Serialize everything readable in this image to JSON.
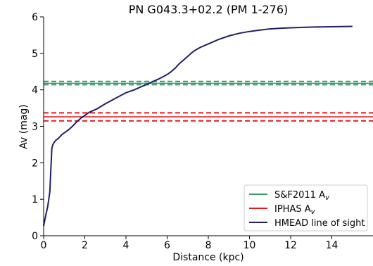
{
  "chart_data": {
    "type": "line",
    "title": "PN G043.3+02.2 (PM 1-276)",
    "xlabel": "Distance (kpc)",
    "ylabel": "Av (mag)",
    "xlim": [
      0,
      16
    ],
    "ylim": [
      0,
      6
    ],
    "xticks": [
      0,
      2,
      4,
      6,
      8,
      10,
      12,
      14
    ],
    "yticks": [
      0,
      1,
      2,
      3,
      4,
      5,
      6
    ],
    "grid": false,
    "legend_position": "bottom-right",
    "series": [
      {
        "name": "HMEAD line of sight",
        "color": "#1f1f6b",
        "style": "solid",
        "x": [
          0.0,
          0.1,
          0.2,
          0.3,
          0.35,
          0.4,
          0.45,
          0.5,
          0.6,
          0.7,
          0.8,
          0.9,
          1.0,
          1.2,
          1.4,
          1.6,
          1.8,
          2.0,
          2.2,
          2.4,
          2.6,
          2.8,
          3.0,
          3.2,
          3.4,
          3.6,
          3.8,
          4.0,
          4.2,
          4.4,
          4.6,
          4.8,
          5.0,
          5.2,
          5.4,
          5.6,
          5.8,
          6.0,
          6.2,
          6.4,
          6.6,
          6.8,
          7.0,
          7.2,
          7.4,
          7.6,
          7.8,
          8.0,
          8.5,
          9.0,
          9.5,
          10.0,
          10.5,
          11.0,
          11.5,
          12.0,
          12.5,
          13.0,
          13.5,
          14.0,
          14.5,
          15.0
        ],
        "y": [
          0.27,
          0.55,
          0.8,
          1.2,
          1.8,
          2.4,
          2.5,
          2.55,
          2.62,
          2.66,
          2.72,
          2.78,
          2.82,
          2.9,
          3.0,
          3.12,
          3.22,
          3.3,
          3.38,
          3.43,
          3.48,
          3.55,
          3.62,
          3.68,
          3.74,
          3.8,
          3.86,
          3.92,
          3.96,
          4.0,
          4.05,
          4.1,
          4.15,
          4.2,
          4.25,
          4.3,
          4.36,
          4.42,
          4.5,
          4.6,
          4.72,
          4.82,
          4.92,
          5.02,
          5.1,
          5.16,
          5.21,
          5.26,
          5.38,
          5.48,
          5.55,
          5.6,
          5.64,
          5.67,
          5.69,
          5.7,
          5.71,
          5.72,
          5.725,
          5.73,
          5.735,
          5.74
        ]
      }
    ],
    "hlines": [
      {
        "name": "S&F2011 A_v",
        "color": "#3a9a6a",
        "style": "solid",
        "y": 4.18
      },
      {
        "color": "#3a9a6a",
        "style": "dashed",
        "y": 4.23
      },
      {
        "color": "#3a9a6a",
        "style": "dashed",
        "y": 4.14
      },
      {
        "name": "IPHAS A_v",
        "color": "#e31a1c",
        "style": "solid",
        "y": 3.26
      },
      {
        "color": "#e31a1c",
        "style": "dashed",
        "y": 3.37
      },
      {
        "color": "#e31a1c",
        "style": "dashed",
        "y": 3.15
      }
    ],
    "legend": [
      {
        "label": "S&F2011 A",
        "subscript": "v",
        "color": "#3a9a6a"
      },
      {
        "label": "IPHAS A",
        "subscript": "v",
        "color": "#e31a1c"
      },
      {
        "label": "HMEAD line of sight",
        "subscript": "",
        "color": "#1f1f6b"
      }
    ]
  }
}
